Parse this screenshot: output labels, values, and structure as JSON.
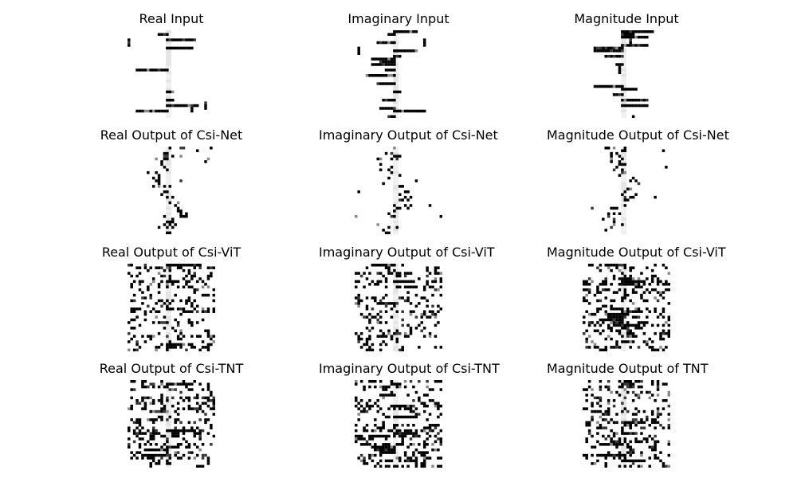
{
  "figure": {
    "background": "#ffffff",
    "colormap": "gray (black = high, white = low)",
    "layout": "4 rows x 3 columns",
    "columns": [
      "Real",
      "Imaginary",
      "Magnitude"
    ]
  },
  "chart_data": [
    {
      "type": "heatmap",
      "title": "Real Input",
      "seed": 11,
      "profile": "input",
      "grid": 32
    },
    {
      "type": "heatmap",
      "title": "Imaginary Input",
      "seed": 12,
      "profile": "input",
      "grid": 32
    },
    {
      "type": "heatmap",
      "title": "Magnitude Input",
      "seed": 13,
      "profile": "input",
      "grid": 32
    },
    {
      "type": "heatmap",
      "title": "Real Output of Csi-Net",
      "seed": 21,
      "profile": "sparse",
      "grid": 32
    },
    {
      "type": "heatmap",
      "title": "Imaginary Output of Csi-Net",
      "seed": 22,
      "profile": "sparse",
      "grid": 32
    },
    {
      "type": "heatmap",
      "title": "Magnitude Output of Csi-Net",
      "seed": 23,
      "profile": "sparse",
      "grid": 32
    },
    {
      "type": "heatmap",
      "title": "Real Output of Csi-ViT",
      "seed": 31,
      "profile": "dense",
      "grid": 32
    },
    {
      "type": "heatmap",
      "title": "Imaginary Output of Csi-ViT",
      "seed": 32,
      "profile": "dense",
      "grid": 32
    },
    {
      "type": "heatmap",
      "title": "Magnitude Output of Csi-ViT",
      "seed": 33,
      "profile": "dense",
      "grid": 32
    },
    {
      "type": "heatmap",
      "title": "Real Output of Csi-TNT",
      "seed": 41,
      "profile": "dense",
      "grid": 32
    },
    {
      "type": "heatmap",
      "title": "Imaginary Output of Csi-TNT",
      "seed": 42,
      "profile": "dense",
      "grid": 32
    },
    {
      "type": "heatmap",
      "title": "Magnitude Output of TNT",
      "seed": 43,
      "profile": "dense",
      "grid": 32
    }
  ]
}
